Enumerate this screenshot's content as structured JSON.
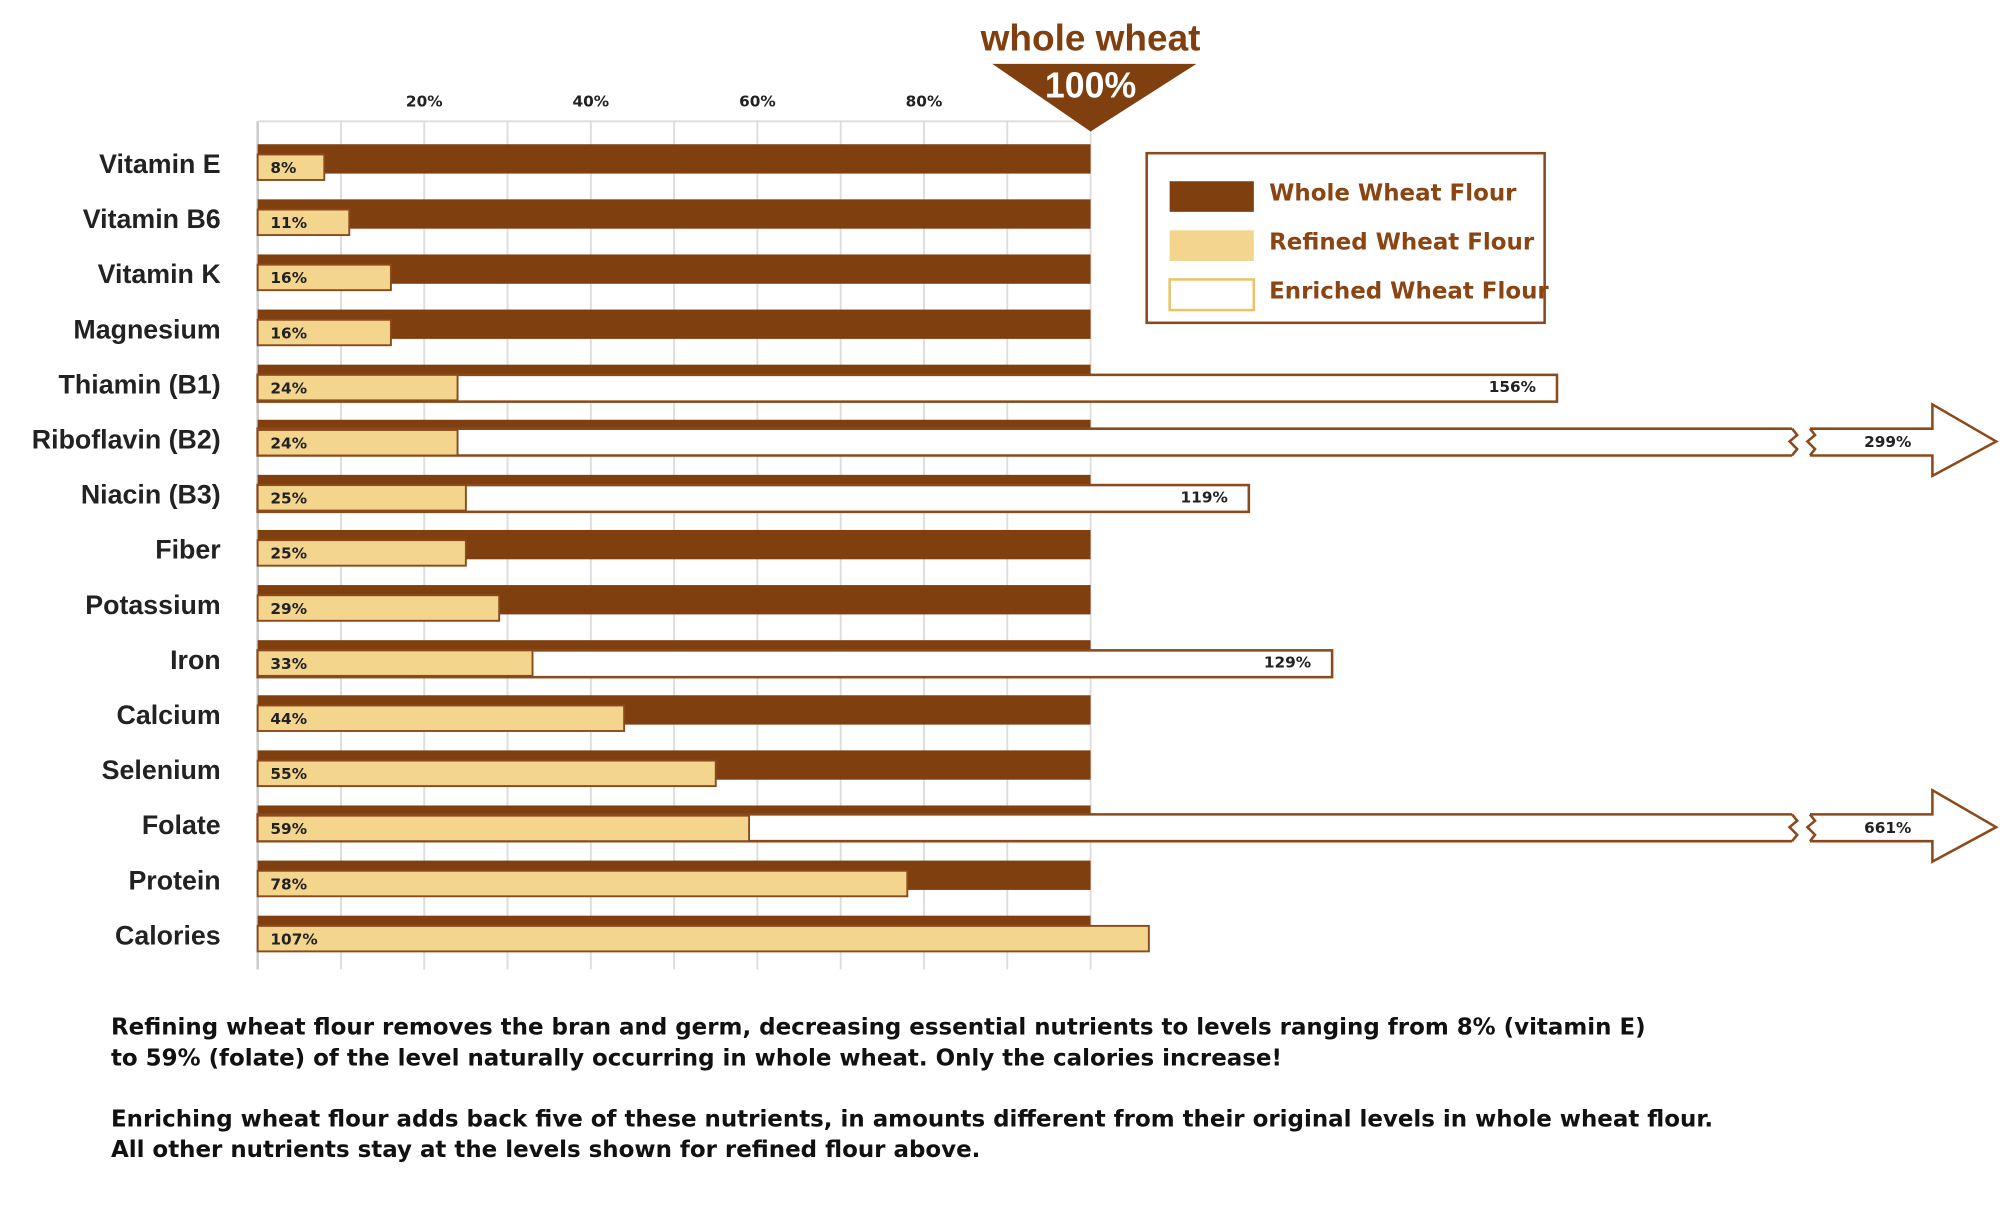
{
  "chart_data": {
    "type": "bar",
    "orientation": "horizontal",
    "annotation": {
      "text": "whole wheat",
      "value": 100,
      "label": "100%"
    },
    "categories": [
      "Vitamin E",
      "Vitamin B6",
      "Vitamin K",
      "Magnesium",
      "Thiamin (B1)",
      "Riboflavin (B2)",
      "Niacin (B3)",
      "Fiber",
      "Potassium",
      "Iron",
      "Calcium",
      "Selenium",
      "Folate",
      "Protein",
      "Calories"
    ],
    "series": [
      {
        "name": "Whole Wheat Flour",
        "color": "#7f3f0f",
        "values": [
          100,
          100,
          100,
          100,
          100,
          100,
          100,
          100,
          100,
          100,
          100,
          100,
          100,
          100,
          100
        ]
      },
      {
        "name": "Refined Wheat Flour",
        "color": "#f4d58d",
        "values": [
          8,
          11,
          16,
          16,
          24,
          24,
          25,
          25,
          29,
          33,
          44,
          55,
          59,
          78,
          107
        ],
        "value_labels": [
          "8%",
          "11%",
          "16%",
          "16%",
          "24%",
          "24%",
          "25%",
          "25%",
          "29%",
          "33%",
          "44%",
          "55%",
          "59%",
          "78%",
          "107%"
        ]
      },
      {
        "name": "Enriched Wheat Flour",
        "color": "#ffffff",
        "values": [
          null,
          null,
          null,
          null,
          156,
          299,
          119,
          null,
          null,
          129,
          null,
          null,
          661,
          null,
          null
        ],
        "value_labels": [
          null,
          null,
          null,
          null,
          "156%",
          "299%",
          "119%",
          null,
          null,
          "129%",
          null,
          null,
          "661%",
          null,
          null
        ]
      }
    ],
    "xlim": [
      0,
      100
    ],
    "xticks": [
      {
        "value": 20,
        "label": "20%"
      },
      {
        "value": 40,
        "label": "40%"
      },
      {
        "value": 60,
        "label": "60%"
      },
      {
        "value": 80,
        "label": "80%"
      }
    ],
    "minor_xticks": [
      10,
      30,
      50,
      70,
      90,
      100
    ],
    "grid": true,
    "legend": "upper right",
    "notes": [
      "Refining wheat flour removes the bran and germ, decreasing essential nutrients to levels ranging from 8% (vitamin E)",
      "to 59% (folate) of the level naturally occurring in whole wheat. Only the calories increase!",
      "Enriching wheat flour adds back five of these nutrients, in amounts different from their original levels in whole wheat flour.",
      "All other nutrients stay at the levels shown for refined flour above."
    ]
  }
}
